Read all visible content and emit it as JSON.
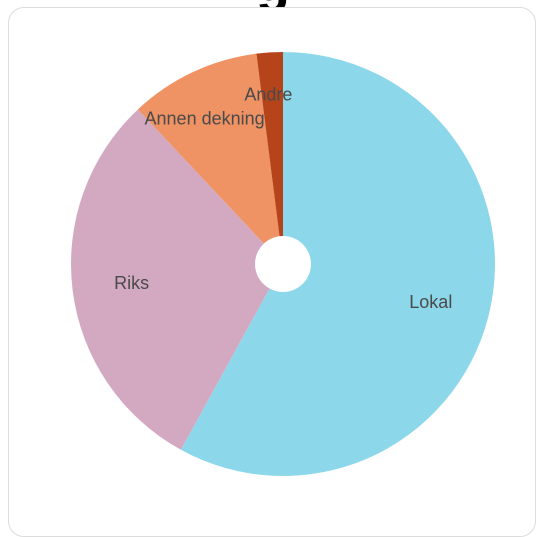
{
  "chart_data": {
    "type": "pie",
    "title": "g",
    "donut_hole": true,
    "slices": [
      {
        "label": "Lokal",
        "value": 58.0,
        "color": "#8cd7ea"
      },
      {
        "label": "Riks",
        "value": 30.0,
        "color": "#d3a9c2"
      },
      {
        "label": "Annen dekning",
        "value": 10.0,
        "color": "#ef9264"
      },
      {
        "label": "Andre",
        "value": 2.0,
        "color": "#b5441b"
      }
    ]
  }
}
